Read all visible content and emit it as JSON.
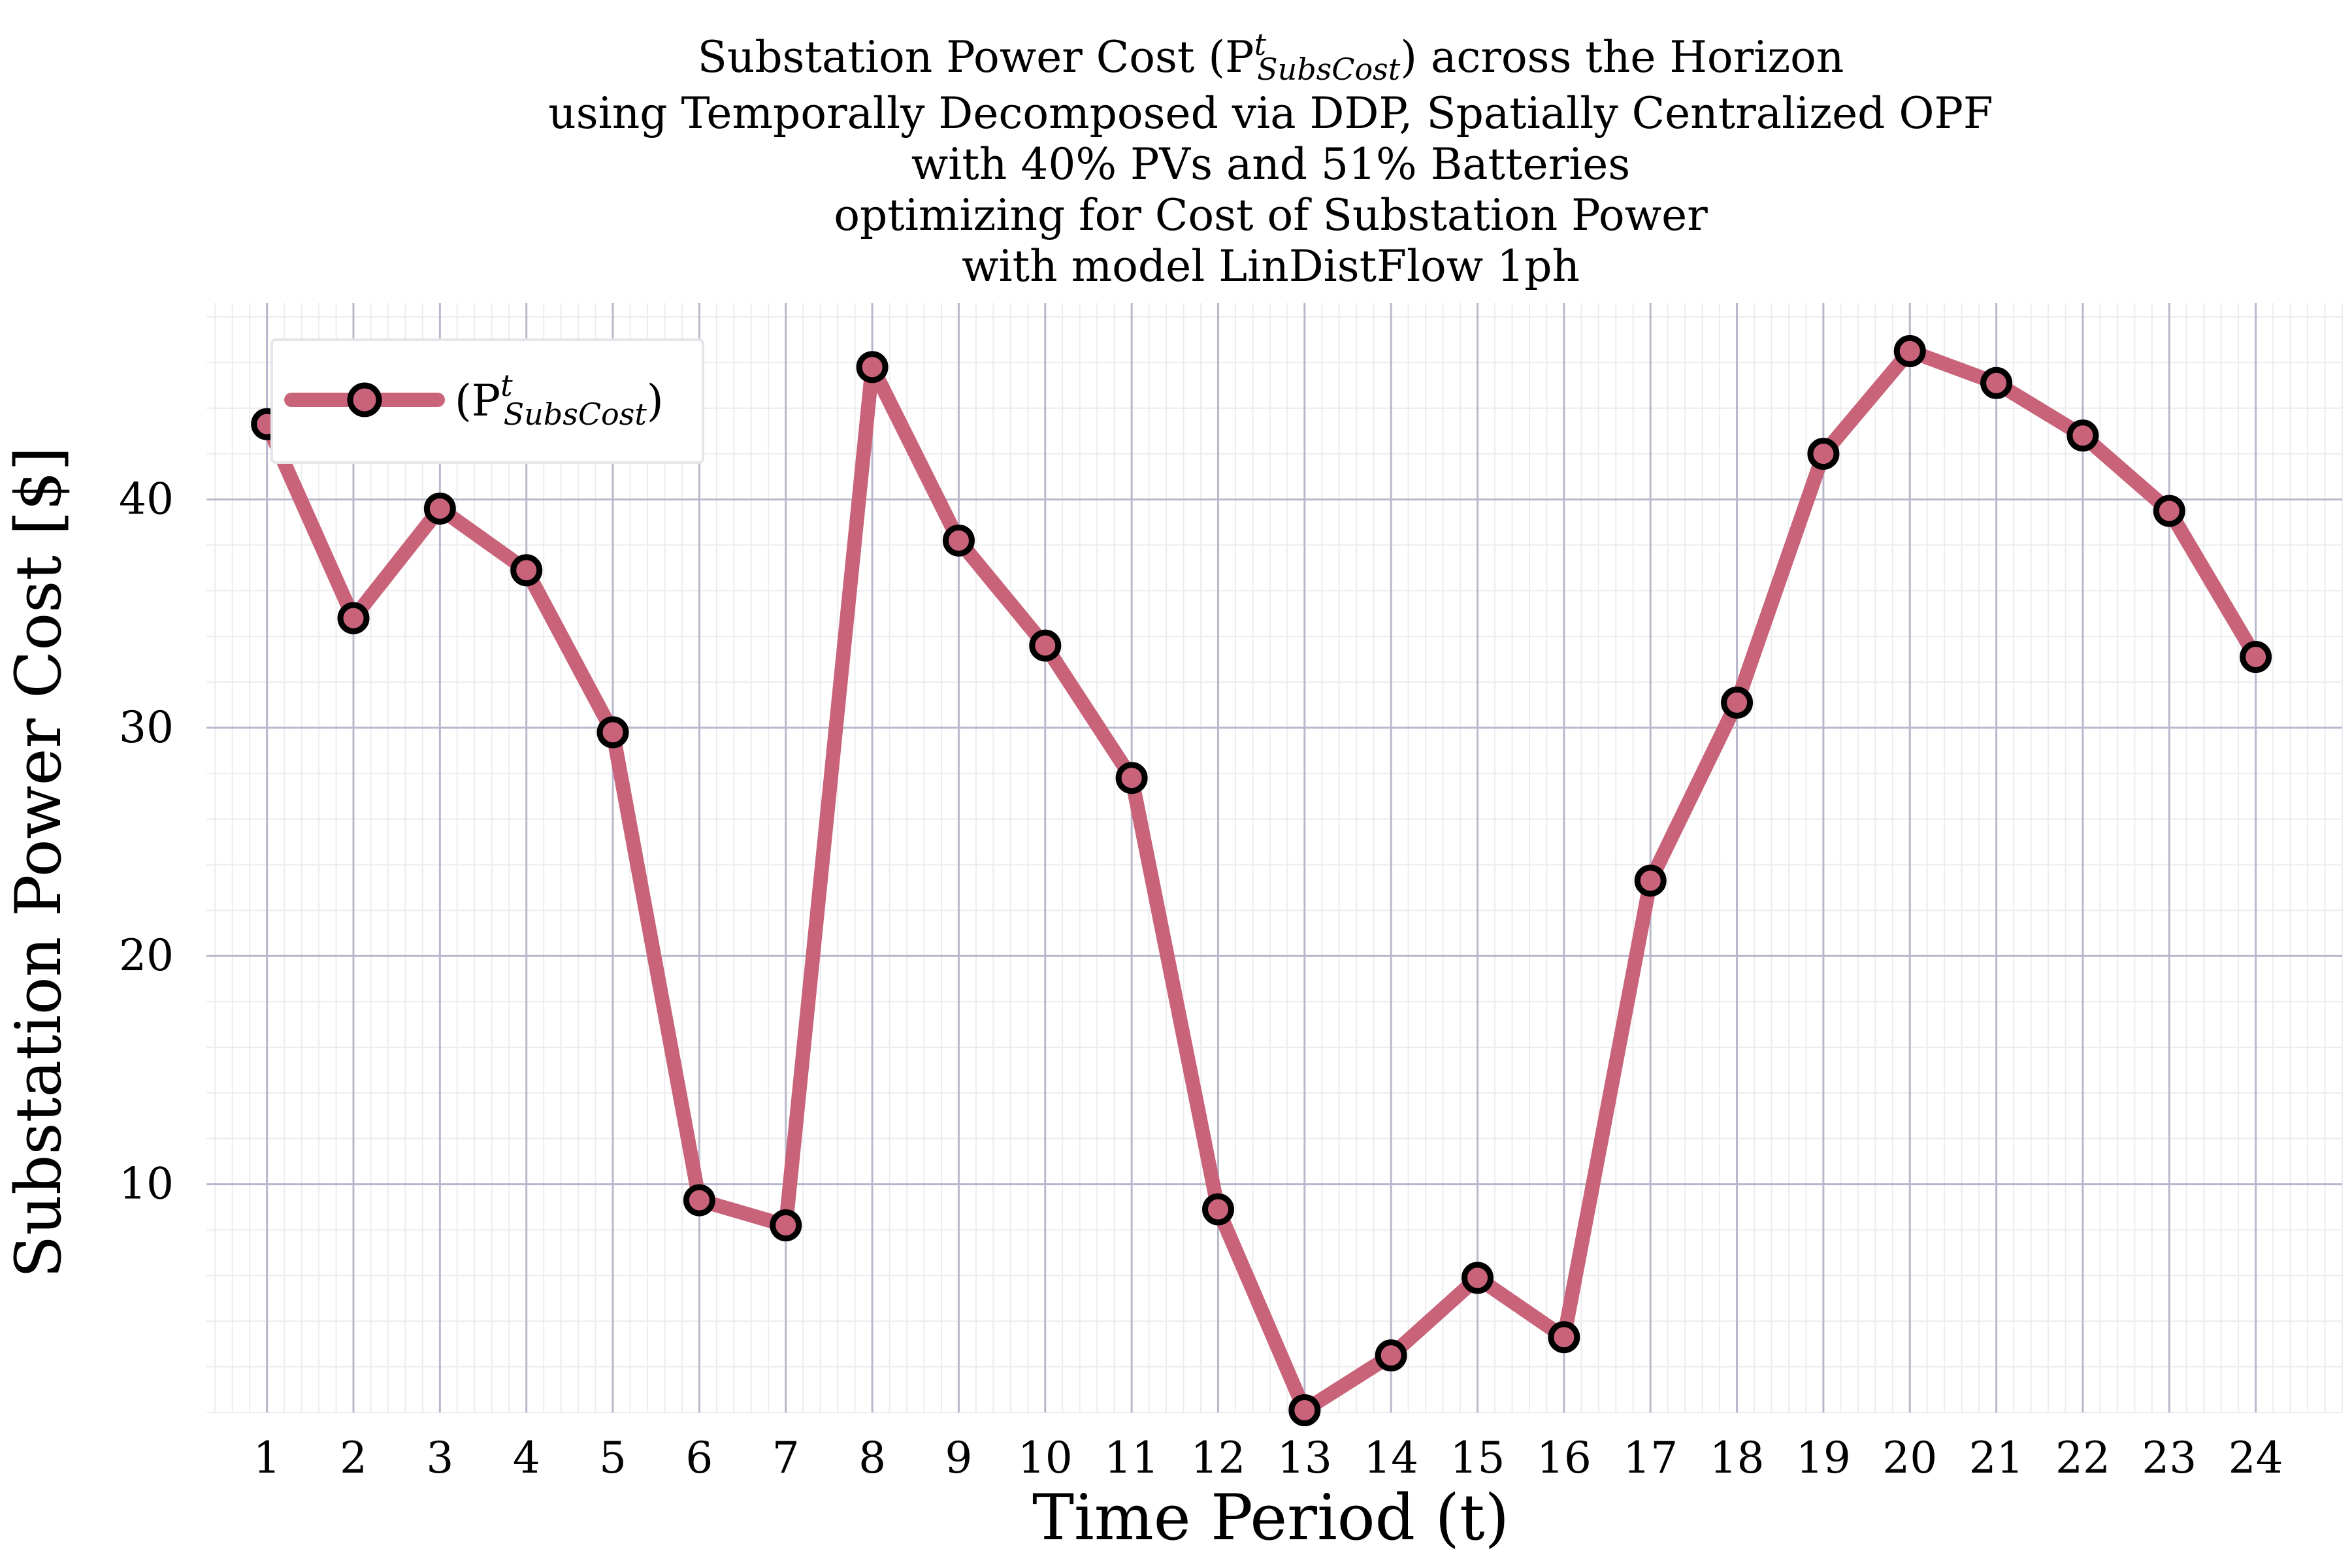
{
  "chart_data": {
    "type": "line",
    "title_lines": [
      "Substation Power Cost (P",
      "using Temporally Decomposed via DDP, Spatially Centralized OPF",
      "with 40% PVs and 51% Batteries",
      "optimizing for Cost of Substation Power",
      "with model LinDistFlow 1ph"
    ],
    "title_math": {
      "sup": "t",
      "sub": "SubsCost",
      "suffix": ") across the Horizon"
    },
    "xlabel": "Time Period (t)",
    "ylabel": "Substation Power Cost [$]",
    "x": [
      1,
      2,
      3,
      4,
      5,
      6,
      7,
      8,
      9,
      10,
      11,
      12,
      13,
      14,
      15,
      16,
      17,
      18,
      19,
      20,
      21,
      22,
      23,
      24
    ],
    "x_ticks": [
      "1",
      "2",
      "3",
      "4",
      "5",
      "6",
      "7",
      "8",
      "9",
      "10",
      "11",
      "12",
      "13",
      "14",
      "15",
      "16",
      "17",
      "18",
      "19",
      "20",
      "21",
      "22",
      "23",
      "24"
    ],
    "y_ticks": [
      "10",
      "20",
      "30",
      "40"
    ],
    "xlim": [
      0.3,
      25.0
    ],
    "ylim": [
      0,
      48.6
    ],
    "grid": true,
    "legend_position": "top-left",
    "series": [
      {
        "name": "(P",
        "name_sup": "t",
        "name_sub": "SubsCost",
        "name_close": ")",
        "color": "#c9637a",
        "marker_edge": "#000000",
        "values": [
          43.3,
          34.8,
          39.6,
          36.9,
          29.8,
          9.3,
          8.2,
          45.8,
          38.2,
          33.6,
          27.8,
          8.9,
          0.1,
          2.5,
          5.9,
          3.3,
          23.3,
          31.1,
          42.0,
          46.5,
          45.1,
          42.8,
          39.5,
          33.1
        ]
      }
    ]
  }
}
